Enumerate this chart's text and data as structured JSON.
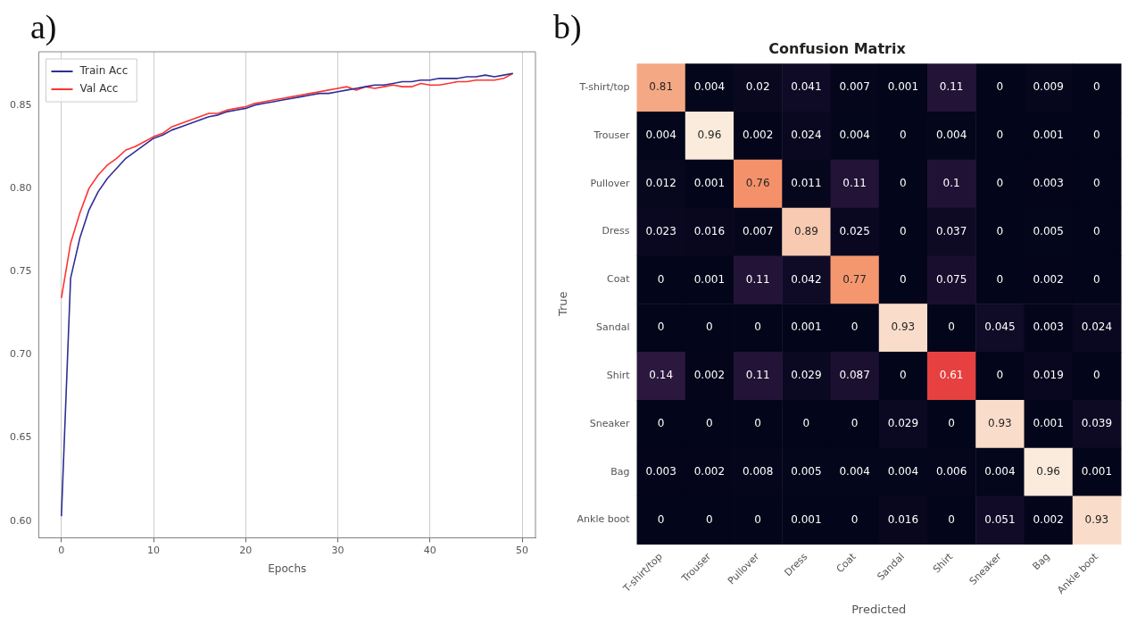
{
  "chart_data": [
    {
      "type": "line",
      "title": "a)",
      "xlabel": "Epochs",
      "x": [
        0,
        1,
        2,
        3,
        4,
        5,
        6,
        7,
        8,
        9,
        10,
        11,
        12,
        13,
        14,
        15,
        16,
        17,
        18,
        19,
        20,
        21,
        22,
        23,
        24,
        25,
        26,
        27,
        28,
        29,
        30,
        31,
        32,
        33,
        34,
        35,
        36,
        37,
        38,
        39,
        40,
        41,
        42,
        43,
        44,
        45,
        46,
        47,
        48,
        49
      ],
      "series": [
        {
          "name": "Train Acc",
          "color": "#2e2e94",
          "values": [
            0.603,
            0.746,
            0.77,
            0.787,
            0.798,
            0.806,
            0.812,
            0.818,
            0.822,
            0.826,
            0.83,
            0.832,
            0.835,
            0.837,
            0.839,
            0.841,
            0.843,
            0.844,
            0.846,
            0.847,
            0.848,
            0.85,
            0.851,
            0.852,
            0.853,
            0.854,
            0.855,
            0.856,
            0.857,
            0.857,
            0.858,
            0.859,
            0.86,
            0.861,
            0.862,
            0.862,
            0.863,
            0.864,
            0.864,
            0.865,
            0.865,
            0.866,
            0.866,
            0.866,
            0.867,
            0.867,
            0.868,
            0.867,
            0.868,
            0.869
          ]
        },
        {
          "name": "Val Acc",
          "color": "#ff3333",
          "values": [
            0.734,
            0.767,
            0.785,
            0.8,
            0.808,
            0.814,
            0.818,
            0.823,
            0.825,
            0.828,
            0.831,
            0.833,
            0.837,
            0.839,
            0.841,
            0.843,
            0.845,
            0.845,
            0.847,
            0.848,
            0.849,
            0.851,
            0.852,
            0.853,
            0.854,
            0.855,
            0.856,
            0.857,
            0.858,
            0.859,
            0.86,
            0.861,
            0.859,
            0.861,
            0.86,
            0.861,
            0.862,
            0.861,
            0.861,
            0.863,
            0.862,
            0.862,
            0.863,
            0.864,
            0.864,
            0.865,
            0.865,
            0.865,
            0.866,
            0.869
          ]
        }
      ],
      "xlim": [
        -2.45,
        51.45
      ],
      "xticks": [
        0,
        10,
        20,
        30,
        40,
        50
      ],
      "ylim": [
        0.59,
        0.882
      ],
      "yticks": [
        {
          "value": 0.6,
          "label": "0.60"
        },
        {
          "value": 0.65,
          "label": "0.65"
        },
        {
          "value": 0.7,
          "label": "0.70"
        },
        {
          "value": 0.75,
          "label": "0.75"
        },
        {
          "value": 0.8,
          "label": "0.80"
        },
        {
          "value": 0.85,
          "label": "0.85"
        }
      ],
      "grid": "x",
      "legend": "top left",
      "marker": "none",
      "line_style": "solid"
    },
    {
      "type": "heatmap",
      "title": "Confusion Matrix",
      "xlabel": "Predicted",
      "ylabel": "True",
      "annotations": [
        "b)"
      ],
      "categories": [
        "T-shirt/top",
        "Trouser",
        "Pullover",
        "Dress",
        "Coat",
        "Sandal",
        "Shirt",
        "Sneaker",
        "Bag",
        "Ankle boot"
      ],
      "y_categories": [
        "T-shirt/top",
        "Trouser",
        "Pullover",
        "Dress",
        "Coat",
        "Sandal",
        "Shirt",
        "Sneaker",
        "Bag",
        "Ankle boot"
      ],
      "cells": [
        [
          0.81,
          0.004,
          0.02,
          0.041,
          0.007,
          0.001,
          0.11,
          0,
          0.009,
          0
        ],
        [
          0.004,
          0.96,
          0.002,
          0.024,
          0.004,
          0,
          0.004,
          0,
          0.001,
          0
        ],
        [
          0.012,
          0.001,
          0.76,
          0.011,
          0.11,
          0,
          0.1,
          0,
          0.003,
          0
        ],
        [
          0.023,
          0.016,
          0.007,
          0.89,
          0.025,
          0,
          0.037,
          0,
          0.005,
          0
        ],
        [
          0,
          0.001,
          0.11,
          0.042,
          0.77,
          0,
          0.075,
          0,
          0.002,
          0
        ],
        [
          0,
          0,
          0,
          0.001,
          0,
          0.93,
          0,
          0.045,
          0.003,
          0.024
        ],
        [
          0.14,
          0.002,
          0.11,
          0.029,
          0.087,
          0,
          0.61,
          0,
          0.019,
          0
        ],
        [
          0,
          0,
          0,
          0,
          0,
          0.029,
          0,
          0.93,
          0.001,
          0.039
        ],
        [
          0.003,
          0.002,
          0.008,
          0.005,
          0.004,
          0.004,
          0.006,
          0.004,
          0.96,
          0.001
        ],
        [
          0,
          0,
          0,
          0.001,
          0,
          0.016,
          0,
          0.051,
          0.002,
          0.93
        ]
      ],
      "data_labels": true
    }
  ]
}
